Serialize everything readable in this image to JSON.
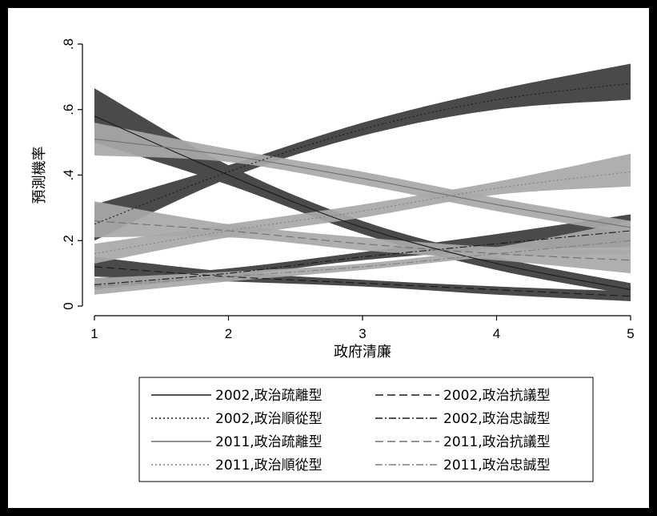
{
  "chart_data": {
    "type": "line",
    "title": "",
    "xlabel": "政府清廉",
    "ylabel": "預測機率",
    "xlim": [
      1,
      5
    ],
    "ylim": [
      0,
      0.8
    ],
    "xticks": [
      {
        "value": 1,
        "label": "1"
      },
      {
        "value": 2,
        "label": "2"
      },
      {
        "value": 3,
        "label": "3"
      },
      {
        "value": 4,
        "label": "4"
      },
      {
        "value": 5,
        "label": "5"
      }
    ],
    "yticks": [
      {
        "value": 0,
        "label": "0"
      },
      {
        "value": 0.2,
        "label": ".2"
      },
      {
        "value": 0.4,
        "label": ".4"
      },
      {
        "value": 0.6,
        "label": ".6"
      },
      {
        "value": 0.8,
        "label": ".8"
      }
    ],
    "grid": false,
    "legend_position": "bottom",
    "x": [
      1,
      2,
      3,
      4,
      5
    ],
    "series": [
      {
        "name": "2002,政治疏離型",
        "year": "2002",
        "band_color": "#4a4a4a",
        "line_color": "#1a1a1a",
        "dash": "solid",
        "values": [
          0.58,
          0.4,
          0.24,
          0.13,
          0.05
        ],
        "lower": [
          0.5,
          0.37,
          0.22,
          0.11,
          0.035
        ],
        "upper": [
          0.665,
          0.43,
          0.26,
          0.15,
          0.07
        ]
      },
      {
        "name": "2002,政治抗議型",
        "year": "2002",
        "band_color": "#4a4a4a",
        "line_color": "#1a1a1a",
        "dash": "dashed",
        "values": [
          0.12,
          0.09,
          0.07,
          0.05,
          0.03
        ],
        "lower": [
          0.09,
          0.075,
          0.06,
          0.035,
          0.015
        ],
        "upper": [
          0.15,
          0.105,
          0.08,
          0.06,
          0.045
        ]
      },
      {
        "name": "2002,政治順從型",
        "year": "2002",
        "band_color": "#4a4a4a",
        "line_color": "#1a1a1a",
        "dash": "dotted",
        "values": [
          0.25,
          0.41,
          0.54,
          0.63,
          0.68
        ],
        "lower": [
          0.2,
          0.39,
          0.52,
          0.6,
          0.63
        ],
        "upper": [
          0.31,
          0.43,
          0.56,
          0.66,
          0.74
        ]
      },
      {
        "name": "2002,政治忠誠型",
        "year": "2002",
        "band_color": "#4a4a4a",
        "line_color": "#1a1a1a",
        "dash": "dashdot",
        "values": [
          0.065,
          0.1,
          0.15,
          0.19,
          0.23
        ],
        "lower": [
          0.05,
          0.09,
          0.14,
          0.17,
          0.18
        ],
        "upper": [
          0.085,
          0.115,
          0.165,
          0.22,
          0.28
        ]
      },
      {
        "name": "2011,政治疏離型",
        "year": "2011",
        "band_color": "#a8a8a8",
        "line_color": "#707070",
        "dash": "solid",
        "values": [
          0.51,
          0.46,
          0.39,
          0.31,
          0.24
        ],
        "lower": [
          0.46,
          0.44,
          0.37,
          0.29,
          0.22
        ],
        "upper": [
          0.56,
          0.48,
          0.41,
          0.33,
          0.26
        ]
      },
      {
        "name": "2011,政治抗議型",
        "year": "2011",
        "band_color": "#a8a8a8",
        "line_color": "#707070",
        "dash": "dashed",
        "values": [
          0.26,
          0.23,
          0.19,
          0.16,
          0.14
        ],
        "lower": [
          0.21,
          0.21,
          0.17,
          0.14,
          0.1
        ],
        "upper": [
          0.32,
          0.25,
          0.21,
          0.18,
          0.17
        ]
      },
      {
        "name": "2011,政治順從型",
        "year": "2011",
        "band_color": "#a8a8a8",
        "line_color": "#808080",
        "dash": "dotted",
        "values": [
          0.16,
          0.23,
          0.29,
          0.36,
          0.41
        ],
        "lower": [
          0.13,
          0.21,
          0.27,
          0.34,
          0.365
        ],
        "upper": [
          0.19,
          0.25,
          0.31,
          0.38,
          0.465
        ]
      },
      {
        "name": "2011,政治忠誠型",
        "year": "2011",
        "band_color": "#a8a8a8",
        "line_color": "#808080",
        "dash": "dashdot",
        "values": [
          0.06,
          0.09,
          0.12,
          0.16,
          0.2
        ],
        "lower": [
          0.035,
          0.075,
          0.11,
          0.15,
          0.16
        ],
        "upper": [
          0.085,
          0.105,
          0.13,
          0.18,
          0.26
        ]
      }
    ]
  }
}
